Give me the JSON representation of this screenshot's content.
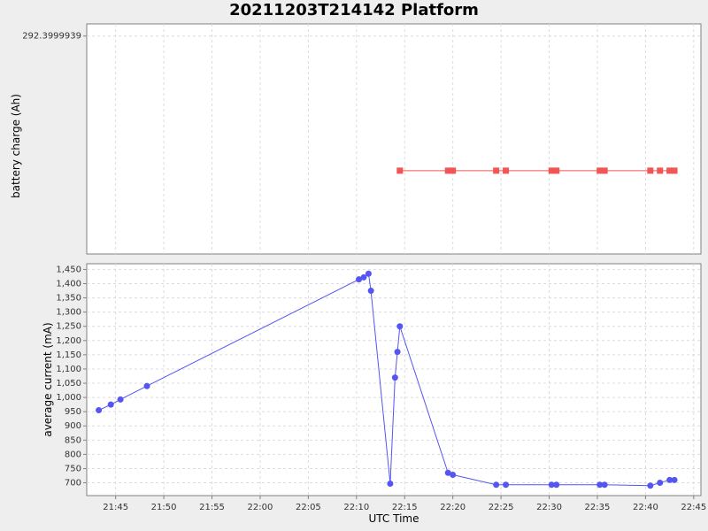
{
  "chart_data": [
    {
      "type": "scatter",
      "title": "20211203T214142 Platform",
      "ylabel": "battery charge (Ah)",
      "y_ticks": [
        292.3999939
      ],
      "y_tick_labels": [
        "292.3999939"
      ],
      "color": "#f25555",
      "series": [
        {
          "x": [
            "22:14:30",
            "22:19:30",
            "22:20:00",
            "22:24:30",
            "22:25:30",
            "22:30:15",
            "22:30:45",
            "22:35:15",
            "22:35:45",
            "22:40:30",
            "22:41:30",
            "22:42:30",
            "22:43:00"
          ],
          "y": [
            292.3966,
            292.3966,
            292.3966,
            292.3966,
            292.3966,
            292.3966,
            292.3966,
            292.3966,
            292.3966,
            292.3966,
            292.3966,
            292.3966,
            292.3966
          ]
        }
      ],
      "ylim": [
        292.3945,
        292.4003
      ]
    },
    {
      "type": "line",
      "xlabel": "UTC Time",
      "ylabel": "average current (mA)",
      "color": "#5555f2",
      "x_ticks": [
        "21:45",
        "21:50",
        "21:55",
        "22:00",
        "22:05",
        "22:10",
        "22:15",
        "22:20",
        "22:25",
        "22:30",
        "22:35",
        "22:40",
        "22:45"
      ],
      "y_ticks": [
        700,
        750,
        800,
        850,
        900,
        950,
        1000,
        1050,
        1100,
        1150,
        1200,
        1250,
        1300,
        1350,
        1400,
        1450
      ],
      "y_tick_labels": [
        "700",
        "750",
        "800",
        "850",
        "900",
        "950",
        "1,000",
        "1,050",
        "1,100",
        "1,150",
        "1,200",
        "1,250",
        "1,300",
        "1,350",
        "1,400",
        "1,450"
      ],
      "ylim": [
        655,
        1470
      ],
      "xlim": [
        "21:42:00",
        "22:45:45"
      ],
      "series": [
        {
          "x": [
            "21:43:15",
            "21:44:30",
            "21:45:30",
            "21:48:15",
            "22:10:15",
            "22:10:45",
            "22:11:15",
            "22:11:30",
            "22:13:30",
            "22:14:00",
            "22:14:15",
            "22:14:30",
            "22:19:30",
            "22:20:00",
            "22:24:30",
            "22:25:30",
            "22:30:15",
            "22:30:45",
            "22:35:15",
            "22:35:45",
            "22:40:30",
            "22:41:30",
            "22:42:30",
            "22:43:00"
          ],
          "y": [
            955,
            975,
            993,
            1040,
            1415,
            1422,
            1435,
            1375,
            697,
            1070,
            1160,
            1250,
            735,
            728,
            693,
            693,
            693,
            693,
            693,
            693,
            690,
            700,
            710,
            710
          ]
        }
      ]
    }
  ]
}
